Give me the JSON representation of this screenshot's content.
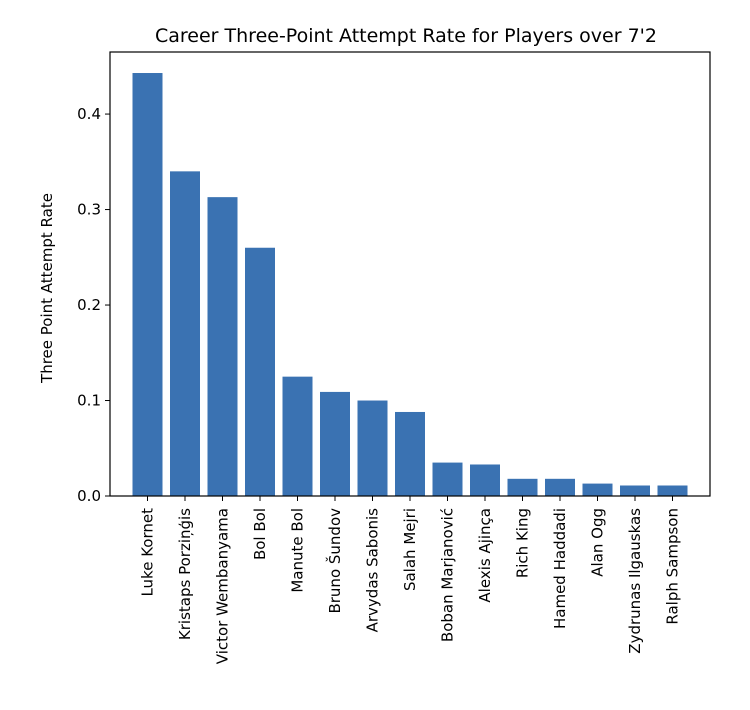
{
  "chart_data": {
    "type": "bar",
    "title": "Career Three-Point Attempt Rate for Players over 7'2",
    "xlabel": "",
    "ylabel": "Three Point Attempt Rate",
    "categories": [
      "Luke Kornet",
      "Kristaps Porziņģis",
      "Victor Wembanyama",
      "Bol Bol",
      "Manute Bol",
      "Bruno Šundov",
      "Arvydas Sabonis",
      "Salah Mejri",
      "Boban Marjanović",
      "Alexis Ajinça",
      "Rich King",
      "Hamed Haddadi",
      "Alan Ogg",
      "Zydrunas Ilgauskas",
      "Ralph Sampson"
    ],
    "values": [
      0.443,
      0.34,
      0.313,
      0.26,
      0.125,
      0.109,
      0.1,
      0.088,
      0.035,
      0.033,
      0.018,
      0.018,
      0.013,
      0.011,
      0.011
    ],
    "ylim": [
      0,
      0.465
    ],
    "yticks": [
      0.0,
      0.1,
      0.2,
      0.3,
      0.4
    ],
    "ytick_labels": [
      "0.0",
      "0.1",
      "0.2",
      "0.3",
      "0.4"
    ],
    "bar_color": "#3a72b2",
    "grid": false,
    "legend": "none"
  }
}
